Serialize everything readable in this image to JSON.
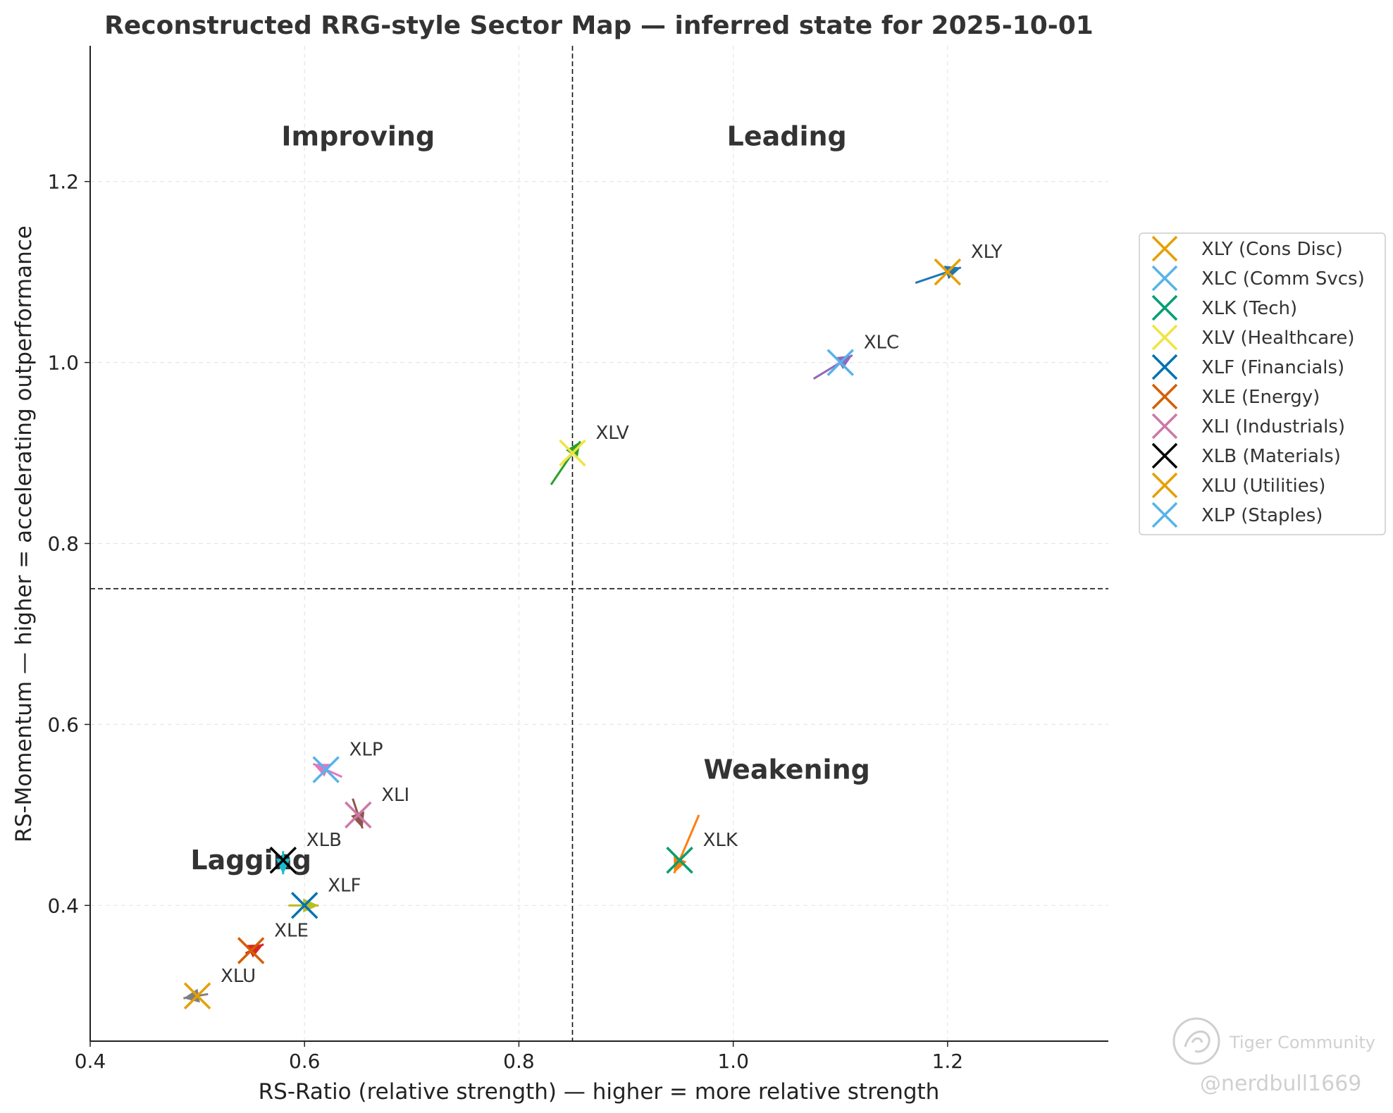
{
  "chart_data": {
    "type": "scatter",
    "title": "Reconstructed RRG-style Sector Map — inferred state for 2025-10-01",
    "xlabel": "RS-Ratio (relative strength) — higher = more relative strength",
    "ylabel": "RS-Momentum — higher = accelerating outperformance",
    "xlim": [
      0.4,
      1.35
    ],
    "ylim": [
      0.25,
      1.35
    ],
    "xticks": [
      0.4,
      0.6,
      0.8,
      1.0,
      1.2
    ],
    "yticks": [
      0.4,
      0.6,
      0.8,
      1.0,
      1.2
    ],
    "xtick_labels": [
      "0.4",
      "0.6",
      "0.8",
      "1.0",
      "1.2"
    ],
    "ytick_labels": [
      "0.4",
      "0.6",
      "0.8",
      "1.0",
      "1.2"
    ],
    "grid": true,
    "ref_lines": {
      "x": 0.85,
      "y": 0.75
    },
    "quadrants": [
      {
        "name": "Improving",
        "x": 0.65,
        "y": 1.25
      },
      {
        "name": "Leading",
        "x": 1.05,
        "y": 1.25
      },
      {
        "name": "Weakening",
        "x": 1.05,
        "y": 0.55
      },
      {
        "name": "Lagging",
        "x": 0.55,
        "y": 0.45
      }
    ],
    "series": [
      {
        "ticker": "XLY",
        "name": "XLY (Cons Disc)",
        "x": 1.2,
        "y": 1.1,
        "color": "#E69F00",
        "tail": [
          1.17,
          1.088
        ],
        "tail_color": "#1f77b4"
      },
      {
        "ticker": "XLC",
        "name": "XLC (Comm Svcs)",
        "x": 1.1,
        "y": 1.0,
        "color": "#56B4E9",
        "tail": [
          1.075,
          0.982
        ],
        "tail_color": "#9467bd"
      },
      {
        "ticker": "XLK",
        "name": "XLK (Tech)",
        "x": 0.95,
        "y": 0.45,
        "color": "#009E73",
        "tail": [
          0.968,
          0.5
        ],
        "tail_color": "#ff7f0e"
      },
      {
        "ticker": "XLV",
        "name": "XLV (Healthcare)",
        "x": 0.85,
        "y": 0.9,
        "color": "#F0E442",
        "tail": [
          0.83,
          0.865
        ],
        "tail_color": "#2ca02c"
      },
      {
        "ticker": "XLF",
        "name": "XLF (Financials)",
        "x": 0.6,
        "y": 0.4,
        "color": "#0072B2",
        "tail": [
          0.585,
          0.4
        ],
        "tail_color": "#bcbd22"
      },
      {
        "ticker": "XLE",
        "name": "XLE (Energy)",
        "x": 0.55,
        "y": 0.35,
        "color": "#D55E00",
        "tail": [
          0.545,
          0.347
        ],
        "tail_color": "#d62728"
      },
      {
        "ticker": "XLI",
        "name": "XLI (Industrials)",
        "x": 0.65,
        "y": 0.5,
        "color": "#CC79A7",
        "tail": [
          0.645,
          0.518
        ],
        "tail_color": "#8c564b"
      },
      {
        "ticker": "XLB",
        "name": "XLB (Materials)",
        "x": 0.58,
        "y": 0.45,
        "color": "#000000",
        "tail": [
          0.58,
          0.46
        ],
        "tail_color": "#17becf"
      },
      {
        "ticker": "XLU",
        "name": "XLU (Utilities)",
        "x": 0.5,
        "y": 0.3,
        "color": "#E69F00",
        "tail": [
          0.51,
          0.302
        ],
        "tail_color": "#7f7f7f"
      },
      {
        "ticker": "XLP",
        "name": "XLP (Staples)",
        "x": 0.62,
        "y": 0.55,
        "color": "#56B4E9",
        "tail": [
          0.635,
          0.542
        ],
        "tail_color": "#e377c2"
      }
    ],
    "legend_position": "outside-right"
  },
  "watermark": {
    "brand": "Tiger Community",
    "handle": "@nerdbull1669"
  }
}
